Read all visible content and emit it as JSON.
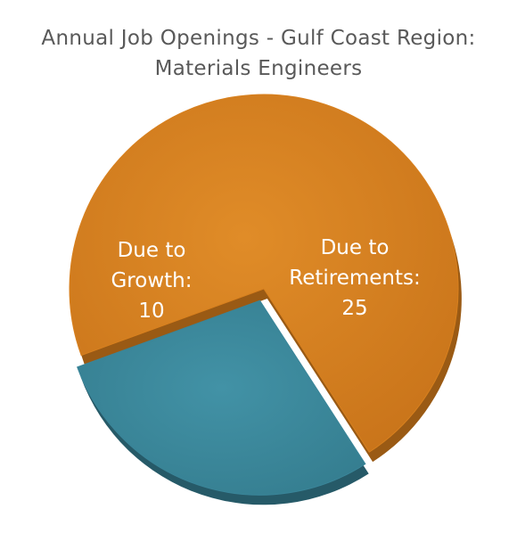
{
  "chart_data": {
    "type": "pie",
    "title": [
      "Annual Job Openings - Gulf Coast Region:",
      "Materials Engineers"
    ],
    "slices": [
      {
        "label_lines": [
          "Due to",
          "Retirements:",
          "25"
        ],
        "category": "Due to Retirements",
        "value": 25,
        "color": "#D8801E",
        "side_color": "#9A5A14"
      },
      {
        "label_lines": [
          "Due to",
          "Growth:",
          "10"
        ],
        "category": "Due to Growth",
        "value": 10,
        "color": "#3A8599",
        "side_color": "#265A68",
        "exploded": true
      }
    ],
    "style": "3d-pie"
  }
}
